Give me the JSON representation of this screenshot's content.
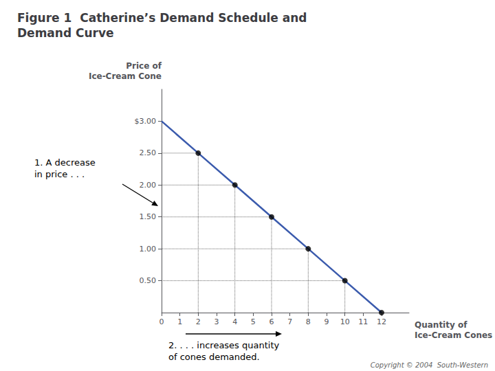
{
  "chart_data": {
    "type": "line",
    "title": "Figure 1  Catherine’s Demand Schedule and\nDemand Curve",
    "xlabel": "Quantity of\nIce-Cream Cones",
    "ylabel": "Price of\nIce-Cream Cone",
    "series": [
      {
        "type": "line",
        "color": "#3B5BAD",
        "x": [
          0,
          2,
          4,
          6,
          8,
          10,
          12
        ],
        "values": [
          3.0,
          2.5,
          2.0,
          1.5,
          1.0,
          0.5,
          0.0
        ]
      },
      {
        "type": "scatter",
        "color": "black",
        "x": [
          2,
          4,
          6,
          8,
          10,
          12
        ],
        "values": [
          2.5,
          2.0,
          1.5,
          1.0,
          0.5,
          0.0
        ]
      },
      {
        "type": "droplines",
        "color": "#666666",
        "line_style": "dotted",
        "x": [
          2,
          4,
          6,
          8,
          10
        ],
        "values": [
          2.5,
          2.0,
          1.5,
          1.0,
          0.5
        ]
      }
    ],
    "xlim": [
      0,
      13.5
    ],
    "ylim": [
      0,
      3.5
    ],
    "xticks": [
      0,
      1,
      2,
      3,
      4,
      5,
      6,
      7,
      8,
      9,
      10,
      11,
      12
    ],
    "yticks": [
      {
        "value": 0.5,
        "label": "0.50"
      },
      {
        "value": 1.0,
        "label": "1.00"
      },
      {
        "value": 1.5,
        "label": "1.50"
      },
      {
        "value": 2.0,
        "label": "2.00"
      },
      {
        "value": 2.5,
        "label": "2.50"
      },
      {
        "value": 3.0,
        "label": "$3.00"
      }
    ],
    "grid": false,
    "annotations": [
      {
        "text": "1. A decrease\nin price . . ."
      },
      {
        "text": "2. . . . increases quantity\nof cones demanded."
      },
      {
        "text": "Copyright © 2004  South-Western"
      }
    ]
  }
}
